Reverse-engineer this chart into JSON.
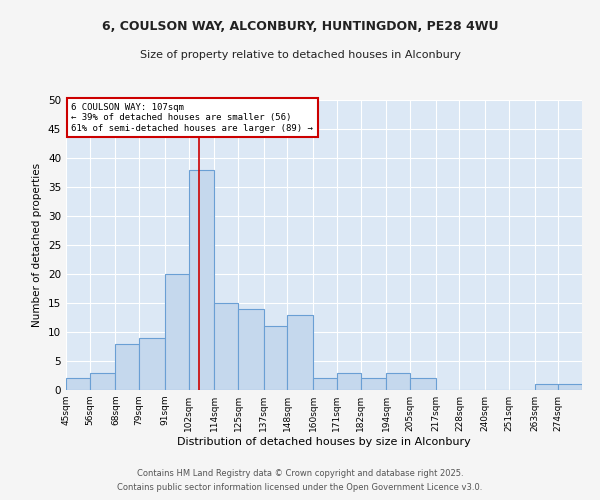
{
  "title1": "6, COULSON WAY, ALCONBURY, HUNTINGDON, PE28 4WU",
  "title2": "Size of property relative to detached houses in Alconbury",
  "xlabel": "Distribution of detached houses by size in Alconbury",
  "ylabel": "Number of detached properties",
  "bin_labels": [
    "45sqm",
    "56sqm",
    "68sqm",
    "79sqm",
    "91sqm",
    "102sqm",
    "114sqm",
    "125sqm",
    "137sqm",
    "148sqm",
    "160sqm",
    "171sqm",
    "182sqm",
    "194sqm",
    "205sqm",
    "217sqm",
    "228sqm",
    "240sqm",
    "251sqm",
    "263sqm",
    "274sqm"
  ],
  "bin_edges": [
    45,
    56,
    68,
    79,
    91,
    102,
    114,
    125,
    137,
    148,
    160,
    171,
    182,
    194,
    205,
    217,
    228,
    240,
    251,
    263,
    274,
    285
  ],
  "values": [
    2,
    3,
    8,
    9,
    20,
    38,
    15,
    14,
    11,
    13,
    2,
    3,
    2,
    3,
    2,
    0,
    0,
    0,
    0,
    1,
    1
  ],
  "bar_color": "#c5d8ed",
  "bar_edge_color": "#6a9fd4",
  "property_size": 107,
  "red_line_color": "#cc0000",
  "annotation_text": "6 COULSON WAY: 107sqm\n← 39% of detached houses are smaller (56)\n61% of semi-detached houses are larger (89) →",
  "annotation_box_color": "#ffffff",
  "annotation_box_edge": "#cc0000",
  "ylim": [
    0,
    50
  ],
  "yticks": [
    0,
    5,
    10,
    15,
    20,
    25,
    30,
    35,
    40,
    45,
    50
  ],
  "bg_color": "#dce8f5",
  "fig_bg_color": "#f5f5f5",
  "footer1": "Contains HM Land Registry data © Crown copyright and database right 2025.",
  "footer2": "Contains public sector information licensed under the Open Government Licence v3.0."
}
